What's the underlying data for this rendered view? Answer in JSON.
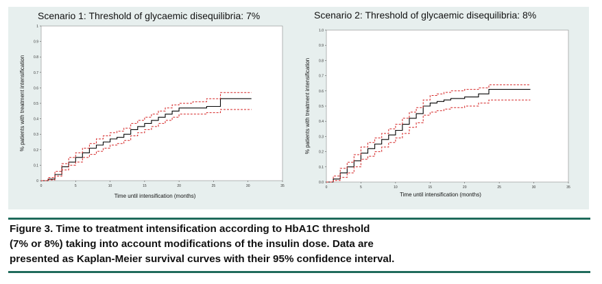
{
  "colors": {
    "panel_bg": "#e7efee",
    "plot_bg": "#ffffff",
    "rule": "#1e6a5b",
    "estimate": "#000000",
    "ci": "#d42020"
  },
  "chart_data": [
    {
      "type": "line",
      "title": "Scenario 1: Threshold of glycaemic disequilibria: 7%",
      "xlabel": "Time until intensification (months)",
      "ylabel": "% patients with treatment intensification",
      "xlim": [
        0,
        35
      ],
      "ylim": [
        0,
        1
      ],
      "xticks": [
        "0",
        "5",
        "10",
        "15",
        "20",
        "25",
        "30",
        "35"
      ],
      "yticks": [
        "0",
        "0.1",
        "0.2",
        "0.3",
        "0.4",
        "0.5",
        "0.6",
        "0.7",
        "0.8",
        "0.9",
        "1"
      ],
      "series": [
        {
          "name": "Kaplan-Meier estimate",
          "style": "solid",
          "x": [
            0,
            1,
            2,
            3,
            4,
            5,
            6,
            7,
            8,
            9,
            10,
            11,
            12,
            13,
            14,
            15,
            16,
            17,
            18,
            19,
            20,
            22,
            24,
            26,
            30.5
          ],
          "y": [
            0,
            0.01,
            0.04,
            0.09,
            0.12,
            0.15,
            0.18,
            0.21,
            0.23,
            0.25,
            0.27,
            0.28,
            0.3,
            0.33,
            0.35,
            0.37,
            0.39,
            0.41,
            0.43,
            0.45,
            0.47,
            0.47,
            0.48,
            0.53,
            0.53
          ]
        },
        {
          "name": "95% CI upper",
          "style": "dashed",
          "x": [
            0,
            1,
            2,
            3,
            4,
            5,
            6,
            7,
            8,
            9,
            10,
            11,
            12,
            13,
            14,
            15,
            16,
            17,
            18,
            19,
            20,
            22,
            24,
            26,
            30.5
          ],
          "y": [
            0,
            0.02,
            0.06,
            0.11,
            0.15,
            0.18,
            0.21,
            0.24,
            0.27,
            0.29,
            0.31,
            0.32,
            0.34,
            0.37,
            0.39,
            0.41,
            0.43,
            0.45,
            0.47,
            0.49,
            0.5,
            0.51,
            0.53,
            0.57,
            0.57
          ]
        },
        {
          "name": "95% CI lower",
          "style": "dashed",
          "x": [
            0,
            1,
            2,
            3,
            4,
            5,
            6,
            7,
            8,
            9,
            10,
            11,
            12,
            13,
            14,
            15,
            16,
            17,
            18,
            19,
            20,
            22,
            24,
            26,
            30.5
          ],
          "y": [
            0,
            0.005,
            0.03,
            0.07,
            0.1,
            0.12,
            0.15,
            0.17,
            0.19,
            0.21,
            0.23,
            0.24,
            0.26,
            0.29,
            0.31,
            0.33,
            0.35,
            0.37,
            0.39,
            0.41,
            0.43,
            0.43,
            0.44,
            0.46,
            0.46
          ]
        }
      ]
    },
    {
      "type": "line",
      "title": "Scenario 2: Threshold of glycaemic disequilibria: 8%",
      "xlabel": "Time until intensification (months)",
      "ylabel": "% patients with treatment intensification",
      "xlim": [
        0,
        35
      ],
      "ylim": [
        0,
        1
      ],
      "xticks": [
        "0",
        "5",
        "10",
        "15",
        "20",
        "25",
        "30",
        "35"
      ],
      "yticks": [
        "0.0",
        "0.1",
        "0.2",
        "0.3",
        "0.4",
        "0.5",
        "0.6",
        "0.7",
        "0.8",
        "0.9",
        "1.0"
      ],
      "series": [
        {
          "name": "Kaplan-Meier estimate",
          "style": "solid",
          "x": [
            0,
            1,
            2,
            3,
            4,
            5,
            6,
            7,
            8,
            9,
            10,
            11,
            12,
            13,
            14,
            15,
            16,
            17,
            18,
            20,
            22,
            23.5,
            29.5
          ],
          "y": [
            0,
            0.02,
            0.06,
            0.1,
            0.14,
            0.19,
            0.22,
            0.25,
            0.28,
            0.31,
            0.34,
            0.38,
            0.42,
            0.45,
            0.5,
            0.52,
            0.53,
            0.54,
            0.55,
            0.56,
            0.58,
            0.61,
            0.61
          ]
        },
        {
          "name": "95% CI upper",
          "style": "dashed",
          "x": [
            0,
            1,
            2,
            3,
            4,
            5,
            6,
            7,
            8,
            9,
            10,
            11,
            12,
            13,
            14,
            15,
            16,
            17,
            18,
            20,
            22,
            23.5,
            29.5
          ],
          "y": [
            0,
            0.04,
            0.09,
            0.13,
            0.18,
            0.23,
            0.26,
            0.29,
            0.32,
            0.35,
            0.38,
            0.42,
            0.46,
            0.49,
            0.54,
            0.57,
            0.58,
            0.59,
            0.6,
            0.61,
            0.62,
            0.64,
            0.64
          ]
        },
        {
          "name": "95% CI lower",
          "style": "dashed",
          "x": [
            0,
            1,
            2,
            3,
            4,
            5,
            6,
            7,
            8,
            9,
            10,
            11,
            12,
            13,
            14,
            15,
            16,
            17,
            18,
            20,
            22,
            23.5,
            29.5
          ],
          "y": [
            0,
            0.01,
            0.03,
            0.06,
            0.1,
            0.15,
            0.17,
            0.2,
            0.23,
            0.26,
            0.29,
            0.32,
            0.36,
            0.39,
            0.44,
            0.46,
            0.47,
            0.48,
            0.49,
            0.5,
            0.52,
            0.54,
            0.54
          ]
        }
      ]
    }
  ],
  "caption": {
    "lines": [
      "Figure 3. Time to treatment intensification according to HbA1C threshold",
      "(7% or 8%) taking into account modifications of the insulin dose. Data are",
      "presented as Kaplan-Meier survival curves with their 95% confidence interval."
    ]
  }
}
